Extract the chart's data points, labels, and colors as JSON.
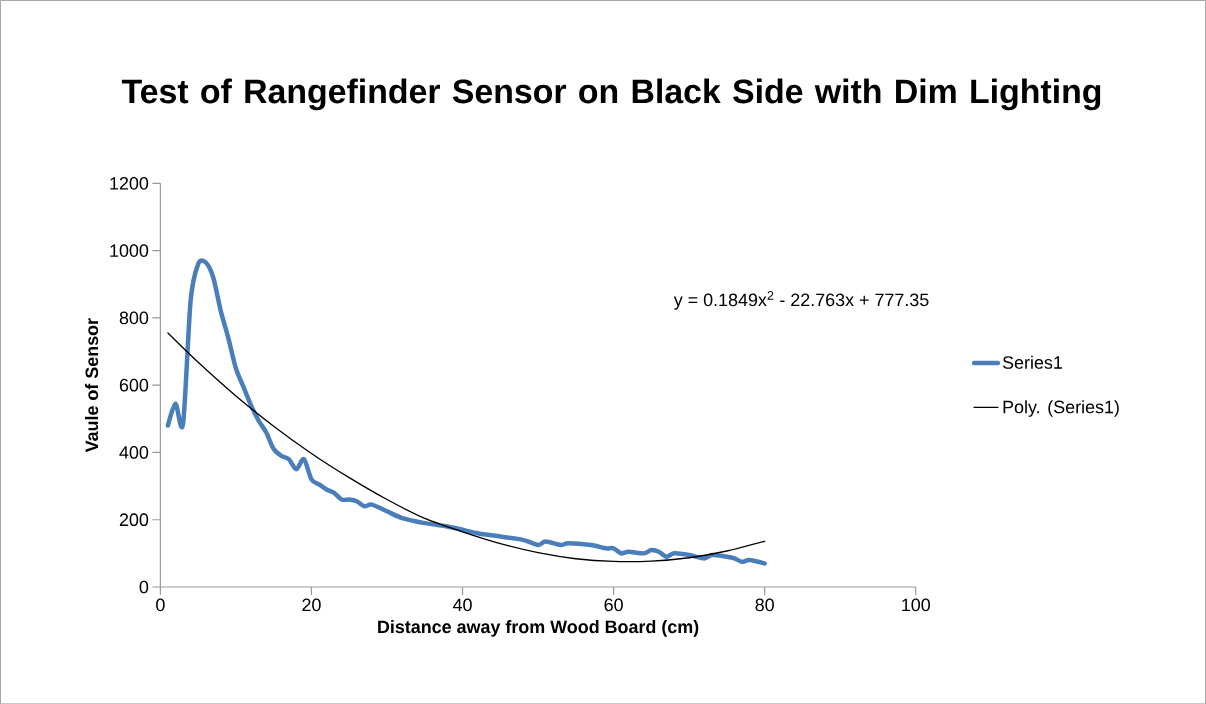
{
  "chart_data": {
    "type": "line",
    "title": "Test of Rangefinder Sensor on Black Side with Dim Lighting",
    "xlabel": "Distance away from Wood Board (cm)",
    "ylabel": "Vaule of Sensor",
    "annotations": [
      "y = 0.1849x$^{2}$ - 22.763x + 777.35"
    ],
    "xlim": [
      0,
      100
    ],
    "xticks": [
      0,
      20,
      40,
      60,
      80,
      100
    ],
    "ylim": [
      0,
      1200
    ],
    "yticks": [
      0,
      200,
      400,
      600,
      800,
      1000,
      1200
    ],
    "grid": false,
    "legend": "right",
    "marker": "none",
    "line_style": "solid",
    "series": [
      {
        "name": "Series1",
        "color": "#4a7ebb",
        "x": [
          1,
          2,
          3,
          4,
          5,
          6,
          7,
          8,
          9,
          10,
          11,
          12,
          13,
          14,
          15,
          16,
          17,
          18,
          19,
          20,
          21,
          22,
          23,
          24,
          25,
          26,
          27,
          28,
          30,
          32,
          35,
          38,
          40,
          42,
          45,
          48,
          50,
          51,
          53,
          54,
          57,
          59,
          60,
          61,
          62,
          64,
          65,
          66,
          67,
          68,
          70,
          72,
          73,
          75,
          76,
          77,
          78,
          80
        ],
        "values": [
          480,
          545,
          485,
          850,
          960,
          965,
          920,
          820,
          740,
          650,
          595,
          540,
          495,
          460,
          410,
          390,
          380,
          350,
          380,
          320,
          305,
          290,
          280,
          260,
          260,
          255,
          240,
          245,
          225,
          205,
          190,
          180,
          170,
          160,
          150,
          140,
          125,
          135,
          125,
          130,
          125,
          115,
          115,
          100,
          105,
          100,
          110,
          105,
          90,
          100,
          95,
          85,
          95,
          90,
          85,
          75,
          80,
          70
        ]
      },
      {
        "name": "Poly. (Series1)",
        "color": "#000000",
        "x": [
          1,
          5,
          10,
          15,
          20,
          25,
          30,
          35,
          40,
          45,
          50,
          55,
          60,
          65,
          70,
          75,
          80
        ],
        "values": [
          755,
          668,
          568,
          478,
          397,
          325,
          260,
          204,
          164,
          129,
          102,
          84,
          76,
          77,
          87,
          107,
          136
        ]
      }
    ]
  }
}
